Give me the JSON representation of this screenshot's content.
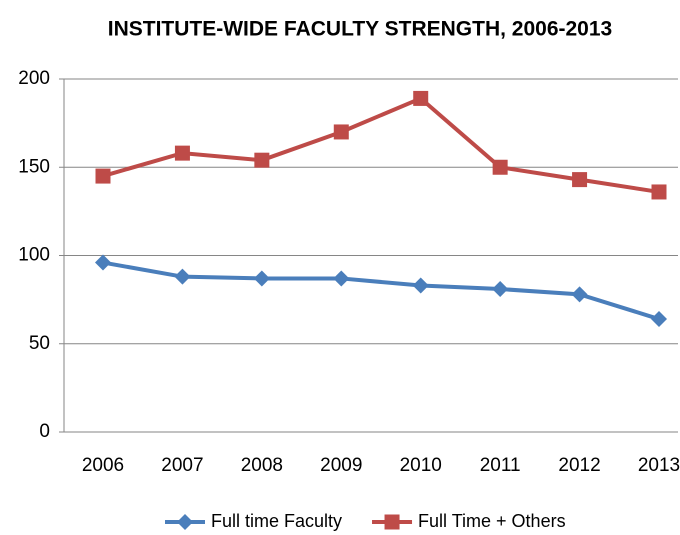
{
  "chart_data": {
    "type": "line",
    "title": "INSTITUTE-WIDE FACULTY STRENGTH, 2006-2013",
    "categories": [
      "2006",
      "2007",
      "2008",
      "2009",
      "2010",
      "2011",
      "2012",
      "2013"
    ],
    "series": [
      {
        "name": "Full time Faculty",
        "color": "#4a7ebb",
        "marker": "diamond",
        "values": [
          96,
          88,
          87,
          87,
          83,
          81,
          78,
          64
        ]
      },
      {
        "name": "Full Time + Others",
        "color": "#be4b48",
        "marker": "square",
        "values": [
          145,
          158,
          154,
          170,
          189,
          150,
          143,
          136
        ]
      }
    ],
    "ylim": [
      0,
      200
    ],
    "yticks": [
      0,
      50,
      100,
      150,
      200
    ],
    "grid": true,
    "legend": "bottom"
  }
}
